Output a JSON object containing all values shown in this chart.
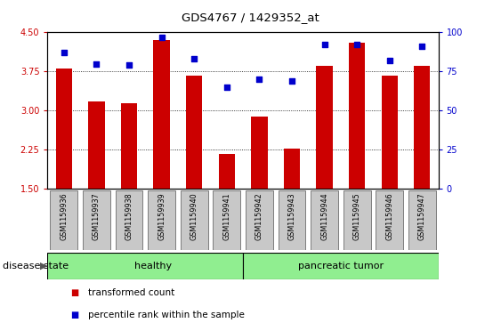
{
  "title": "GDS4767 / 1429352_at",
  "samples": [
    "GSM1159936",
    "GSM1159937",
    "GSM1159938",
    "GSM1159939",
    "GSM1159940",
    "GSM1159941",
    "GSM1159942",
    "GSM1159943",
    "GSM1159944",
    "GSM1159945",
    "GSM1159946",
    "GSM1159947"
  ],
  "red_values": [
    3.8,
    3.17,
    3.14,
    4.35,
    3.67,
    2.17,
    2.88,
    2.27,
    3.85,
    4.3,
    3.67,
    3.85
  ],
  "blue_values": [
    87,
    80,
    79,
    97,
    83,
    65,
    70,
    69,
    92,
    92,
    82,
    91
  ],
  "healthy_count": 6,
  "disease_label": "disease state",
  "group_labels": [
    "healthy",
    "pancreatic tumor"
  ],
  "ylim_left": [
    1.5,
    4.5
  ],
  "ylim_right": [
    0,
    100
  ],
  "yticks_left": [
    1.5,
    2.25,
    3.0,
    3.75,
    4.5
  ],
  "yticks_right": [
    0,
    25,
    50,
    75,
    100
  ],
  "bar_color": "#cc0000",
  "dot_color": "#0000cc",
  "bar_bottom": 1.5,
  "grid_values": [
    2.25,
    3.0,
    3.75
  ],
  "legend_red": "transformed count",
  "legend_blue": "percentile rank within the sample",
  "tick_label_color_left": "#cc0000",
  "tick_label_color_right": "#0000cc",
  "group_color": "#90ee90",
  "tickbox_color": "#c8c8c8"
}
